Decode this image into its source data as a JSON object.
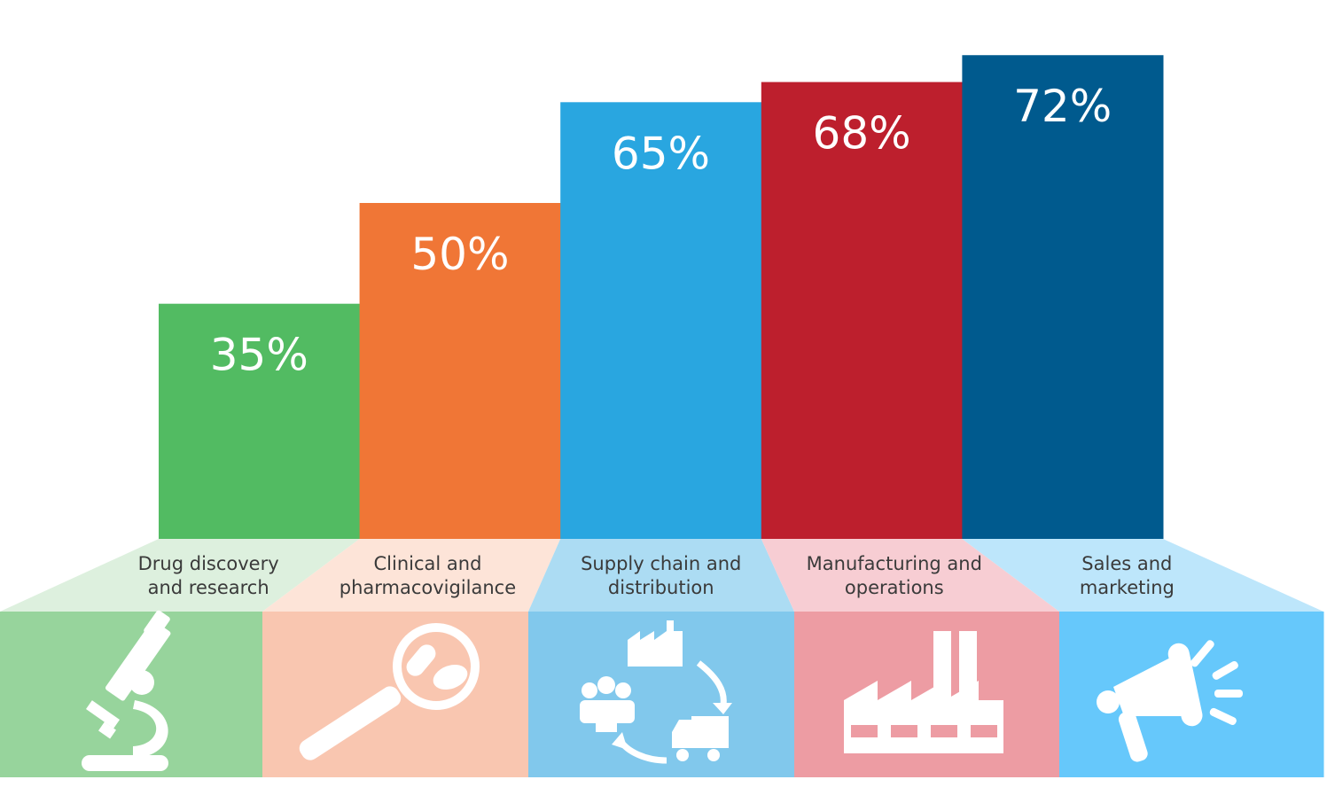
{
  "chart_data": {
    "type": "bar",
    "categories": [
      [
        "Drug discovery",
        "and research"
      ],
      [
        "Clinical and",
        "pharmacovigilance"
      ],
      [
        "Supply chain and",
        "distribution"
      ],
      [
        "Manufacturing and",
        "operations"
      ],
      [
        "Sales and",
        "marketing"
      ]
    ],
    "values": [
      35,
      50,
      65,
      68,
      72
    ],
    "value_labels": [
      "35%",
      "50%",
      "65%",
      "68%",
      "72%"
    ],
    "ylim": [
      0,
      100
    ],
    "grid": false,
    "legend": "none",
    "colors": [
      "#52bb62",
      "#f07636",
      "#29a6e0",
      "#bd1f2d",
      "#005a8e"
    ],
    "light_colors": [
      "#ddf0de",
      "#fde4d8",
      "#acdcf3",
      "#f7cdd3",
      "#bde6fb"
    ],
    "panel_colors": [
      "#97d49c",
      "#f9c6b0",
      "#81c8ec",
      "#ed9ca3",
      "#66c8fb"
    ],
    "icons": [
      "microscope-icon",
      "magnifier-pills-icon",
      "supply-cycle-icon",
      "factory-icon",
      "megaphone-icon"
    ]
  }
}
